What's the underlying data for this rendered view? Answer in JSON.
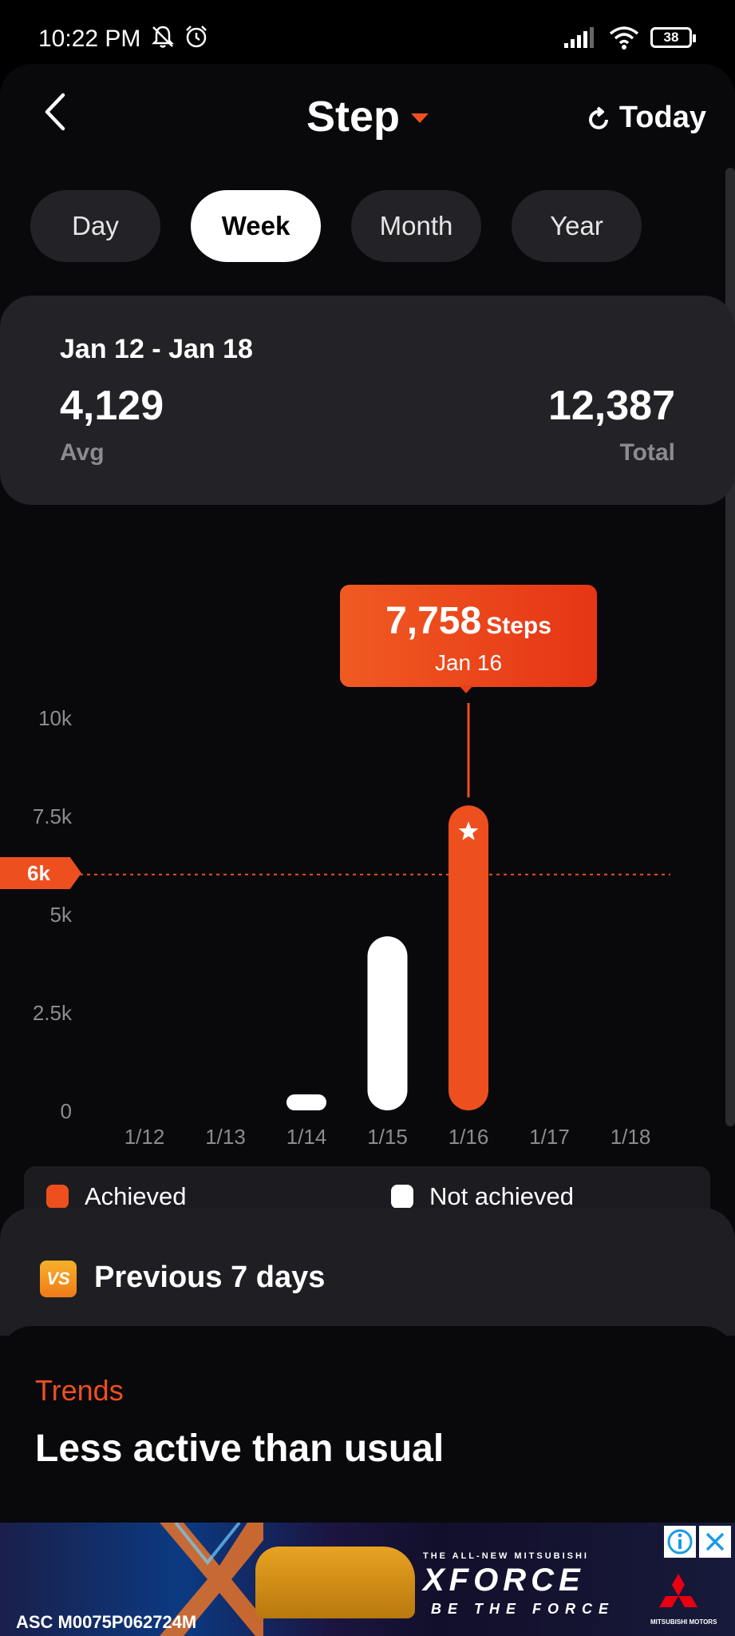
{
  "status_bar": {
    "time": "10:22 PM",
    "battery": "38"
  },
  "header": {
    "title": "Step",
    "today_label": "Today"
  },
  "tabs": [
    {
      "label": "Day",
      "active": false
    },
    {
      "label": "Week",
      "active": true
    },
    {
      "label": "Month",
      "active": false
    },
    {
      "label": "Year",
      "active": false
    }
  ],
  "summary": {
    "range": "Jan 12 - Jan 18",
    "avg_value": "4,129",
    "avg_label": "Avg",
    "total_value": "12,387",
    "total_label": "Total"
  },
  "tooltip": {
    "value": "7,758",
    "unit": "Steps",
    "date": "Jan 16"
  },
  "goal": {
    "label": "6k",
    "value": 6000
  },
  "chart_data": {
    "type": "bar",
    "categories": [
      "1/12",
      "1/13",
      "1/14",
      "1/15",
      "1/16",
      "1/17",
      "1/18"
    ],
    "values": [
      0,
      0,
      200,
      4429,
      7758,
      0,
      0
    ],
    "achieved": [
      false,
      false,
      false,
      false,
      true,
      false,
      false
    ],
    "y_ticks": [
      "0",
      "2.5k",
      "5k",
      "7.5k",
      "10k"
    ],
    "ylim": [
      0,
      10000
    ],
    "goal": 6000,
    "colors": {
      "achieved": "#ee4f1f",
      "not_achieved": "#ffffff"
    }
  },
  "legend": {
    "achieved_label": "Achieved",
    "not_achieved_label": "Not achieved"
  },
  "compare": {
    "icon_text": "VS",
    "label": "Previous 7 days"
  },
  "trends": {
    "label": "Trends",
    "text": "Less active than usual"
  },
  "ad": {
    "tagline_top": "THE ALL-NEW MITSUBISHI",
    "brand": "XFORCE",
    "tagline_bottom": "BE THE FORCE",
    "logo_text": "MITSUBISHI MOTORS",
    "code": "ASC M0075P062724M"
  },
  "colors": {
    "accent": "#ee4f1f",
    "background": "#09090c",
    "card": "#232327"
  }
}
